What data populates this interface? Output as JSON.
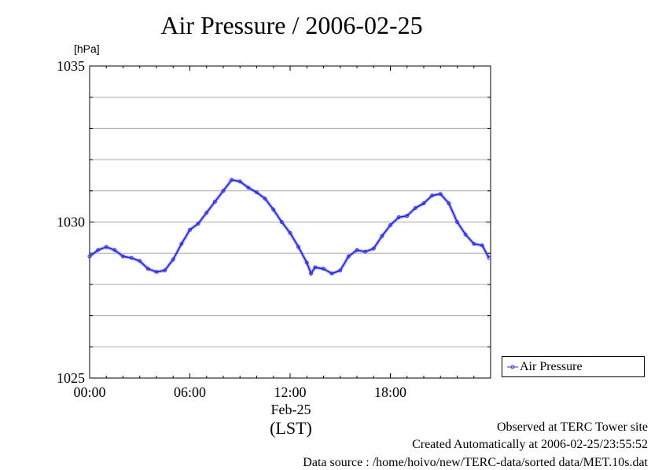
{
  "colors": {
    "series": "#3333ff",
    "grid": "#aaaaaa",
    "axis": "#000000"
  },
  "chart_data": {
    "type": "line",
    "title": "Air Pressure / 2006-02-25",
    "ylabel": "[hPa]",
    "xlabel_date": "Feb-25",
    "xlabel_tz": "(LST)",
    "ylim": [
      1025,
      1035
    ],
    "xlim": [
      0,
      24
    ],
    "y_ticks": [
      1025,
      1030,
      1035
    ],
    "y_tick_labels": [
      "1025",
      "1030",
      "1035"
    ],
    "y_minor_step": 1,
    "x_ticks": [
      0,
      6,
      12,
      18
    ],
    "x_tick_labels": [
      "00:00",
      "06:00",
      "12:00",
      "18:00"
    ],
    "grid": true,
    "legend": "right",
    "series": [
      {
        "name": "Air Pressure",
        "x": [
          0,
          0.5,
          1,
          1.5,
          2,
          2.5,
          3,
          3.5,
          4,
          4.5,
          5,
          5.5,
          6,
          6.5,
          7,
          7.5,
          8,
          8.5,
          9,
          9.5,
          10,
          10.5,
          11,
          11.5,
          12,
          12.5,
          13,
          13.25,
          13.5,
          14,
          14.5,
          15,
          15.5,
          16,
          16.5,
          17,
          17.5,
          18,
          18.5,
          19,
          19.5,
          20,
          20.5,
          21,
          21.5,
          22,
          22.5,
          23,
          23.5,
          23.9
        ],
        "values": [
          1028.9,
          1029.1,
          1029.2,
          1029.1,
          1028.9,
          1028.85,
          1028.75,
          1028.5,
          1028.4,
          1028.45,
          1028.8,
          1029.3,
          1029.75,
          1029.95,
          1030.3,
          1030.65,
          1031.0,
          1031.35,
          1031.3,
          1031.1,
          1030.95,
          1030.75,
          1030.4,
          1030.0,
          1029.65,
          1029.2,
          1028.7,
          1028.35,
          1028.55,
          1028.5,
          1028.35,
          1028.45,
          1028.9,
          1029.1,
          1029.05,
          1029.15,
          1029.55,
          1029.9,
          1030.15,
          1030.2,
          1030.45,
          1030.6,
          1030.85,
          1030.9,
          1030.6,
          1030.0,
          1029.6,
          1029.3,
          1029.25,
          1028.85
        ]
      }
    ]
  },
  "footer": {
    "observed": "Observed at TERC Tower site",
    "created": "Created Automatically at 2006-02-25/23:55:52",
    "source": "Data source : /home/hoivo/new/TERC-data/sorted data/MET.10s.dat"
  }
}
